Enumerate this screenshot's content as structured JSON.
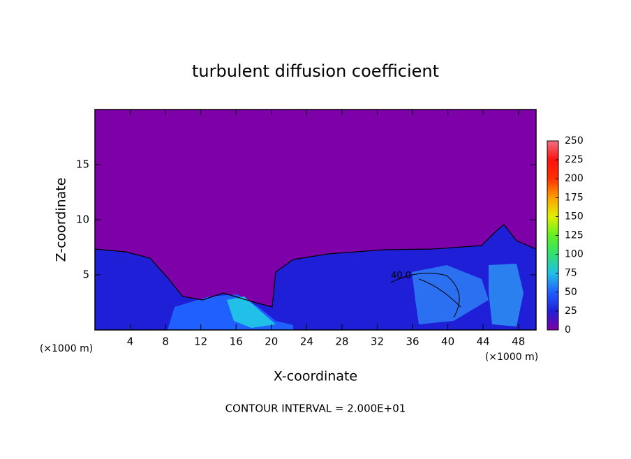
{
  "chart_data": {
    "type": "heatmap",
    "title": "turbulent diffusion coefficient",
    "x_label": "X-coordinate",
    "y_label": "Z-coordinate",
    "x_unit_label": "(×1000 m)",
    "footer": "CONTOUR INTERVAL = 2.000E+01",
    "xlim": [
      0,
      50
    ],
    "xticks": [
      4,
      8,
      12,
      16,
      20,
      24,
      28,
      32,
      36,
      40,
      44,
      48
    ],
    "ylim": [
      0,
      20
    ],
    "yticks": [
      5,
      10,
      15
    ],
    "clim": [
      0,
      250
    ],
    "cticks": [
      0,
      25,
      50,
      75,
      100,
      125,
      150,
      175,
      200,
      225,
      250
    ],
    "colormap": [
      "#7d00a8",
      "#1f1fd8",
      "#2060ff",
      "#20c0e8",
      "#30e070",
      "#60f020",
      "#e0f000",
      "#ffa000",
      "#ff3000",
      "#ff1010",
      "#f07080"
    ],
    "annotations": [
      {
        "text": "40.0",
        "x": 34.7,
        "y": 4.9
      }
    ]
  }
}
